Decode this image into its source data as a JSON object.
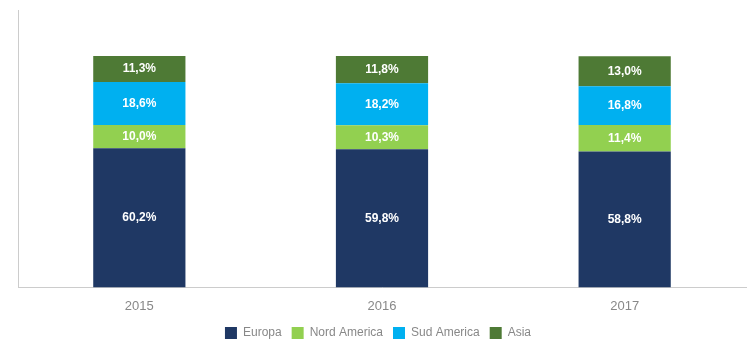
{
  "chart_data": {
    "type": "bar",
    "stacked": true,
    "categories": [
      "2015",
      "2016",
      "2017"
    ],
    "series": [
      {
        "name": "Europa",
        "color": "#1f3864",
        "values": [
          60.2,
          59.8,
          58.8
        ],
        "value_labels": [
          "60,2%",
          "59,8%",
          "58,8%"
        ]
      },
      {
        "name": "Nord America",
        "color": "#92d050",
        "values": [
          10.0,
          10.3,
          11.4
        ],
        "value_labels": [
          "10,0%",
          "10,3%",
          "11,4%"
        ]
      },
      {
        "name": "Sud America",
        "color": "#00b0f0",
        "values": [
          18.6,
          18.2,
          16.8
        ],
        "value_labels": [
          "18,6%",
          "18,2%",
          "16,8%"
        ]
      },
      {
        "name": "Asia",
        "color": "#4e7a35",
        "values": [
          11.3,
          11.8,
          13.0
        ],
        "value_labels": [
          "11,3%",
          "11,8%",
          "13,0%"
        ]
      }
    ],
    "ylim": [
      0,
      120
    ],
    "tick_labels": "x",
    "grid": false,
    "legend": "bottom",
    "data_labels": true
  }
}
